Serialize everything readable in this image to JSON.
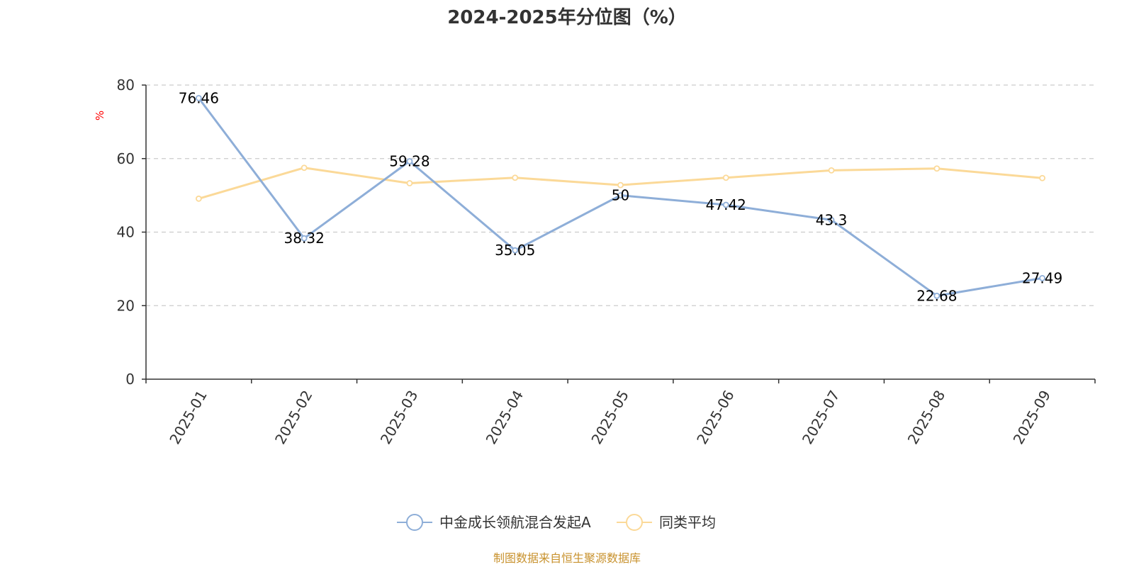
{
  "chart_data": {
    "type": "line",
    "title": "2024-2025年分位图（%）",
    "ylabel": "%",
    "xlabel": "",
    "categories": [
      "2025-01",
      "2025-02",
      "2025-03",
      "2025-04",
      "2025-05",
      "2025-06",
      "2025-07",
      "2025-08",
      "2025-09"
    ],
    "ylim": [
      0,
      80
    ],
    "yticks": [
      0,
      20,
      40,
      60,
      80
    ],
    "grid": true,
    "legend_position": "bottom-center",
    "series": [
      {
        "name": "中金成长领航混合发起A",
        "color": "#8eaed8",
        "show_labels": true,
        "values": [
          76.46,
          38.32,
          59.28,
          35.05,
          50,
          47.42,
          43.3,
          22.68,
          27.49
        ]
      },
      {
        "name": "同类平均",
        "color": "#fbd998",
        "show_labels": false,
        "values": [
          49.1,
          57.5,
          53.3,
          54.8,
          52.8,
          54.8,
          56.8,
          57.3,
          54.7
        ]
      }
    ]
  },
  "colors": {
    "axis": "#333333",
    "grid": "#cccccc",
    "unit_label": "#ff0000",
    "source": "#c8922e"
  },
  "source_note": "制图数据来自恒生聚源数据库"
}
